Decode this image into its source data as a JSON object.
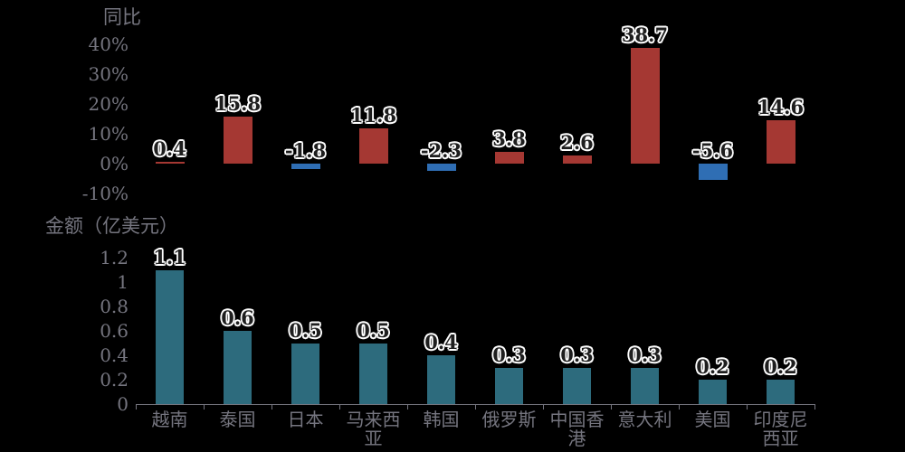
{
  "background": "#000000",
  "colors": {
    "positive_bar": "#A53833",
    "negative_bar": "#2F6EB4",
    "amount_bar": "#2D6B7D",
    "axis_text": "#75757F",
    "data_label_fill": "#1E1E1E",
    "data_label_outline": "#FFFFFF"
  },
  "categories": [
    "越南",
    "泰国",
    "日本",
    "马来西亚",
    "韩国",
    "俄罗斯",
    "中国香港",
    "意大利",
    "美国",
    "印度尼西亚"
  ],
  "category_lines": [
    [
      "越南"
    ],
    [
      "泰国"
    ],
    [
      "日本"
    ],
    [
      "马来西",
      "亚"
    ],
    [
      "韩国"
    ],
    [
      "俄罗斯"
    ],
    [
      "中国香",
      "港"
    ],
    [
      "意大利"
    ],
    [
      "美国"
    ],
    [
      "印度尼",
      "西亚"
    ]
  ],
  "chart_data": [
    {
      "type": "bar",
      "title": "同比",
      "categories": [
        "越南",
        "泰国",
        "日本",
        "马来西亚",
        "韩国",
        "俄罗斯",
        "中国香港",
        "意大利",
        "美国",
        "印度尼西亚"
      ],
      "values": [
        0.4,
        15.8,
        -1.8,
        11.8,
        -2.3,
        3.8,
        2.6,
        38.7,
        -5.6,
        14.6
      ],
      "labels": [
        "0.4",
        "15.8",
        "-1.8",
        "11.8",
        "-2.3",
        "3.8",
        "2.6",
        "38.7",
        "-5.6",
        "14.6"
      ],
      "yticks": [
        "40%",
        "30%",
        "20%",
        "10%",
        "0%",
        "-10%"
      ],
      "ytick_values": [
        40,
        30,
        20,
        10,
        0,
        -10
      ],
      "ylim": [
        -10,
        40
      ],
      "unit": "%",
      "grid": false,
      "legend": "none"
    },
    {
      "type": "bar",
      "title": "金额（亿美元）",
      "categories": [
        "越南",
        "泰国",
        "日本",
        "马来西亚",
        "韩国",
        "俄罗斯",
        "中国香港",
        "意大利",
        "美国",
        "印度尼西亚"
      ],
      "values": [
        1.1,
        0.6,
        0.5,
        0.5,
        0.4,
        0.3,
        0.3,
        0.3,
        0.2,
        0.2
      ],
      "labels": [
        "1.1",
        "0.6",
        "0.5",
        "0.5",
        "0.4",
        "0.3",
        "0.3",
        "0.3",
        "0.2",
        "0.2"
      ],
      "yticks": [
        "1.2",
        "1",
        "0.8",
        "0.6",
        "0.4",
        "0.2",
        "0"
      ],
      "ytick_values": [
        1.2,
        1,
        0.8,
        0.6,
        0.4,
        0.2,
        0
      ],
      "ylim": [
        0,
        1.2
      ],
      "unit": "亿美元",
      "grid": false,
      "legend": "none"
    }
  ]
}
